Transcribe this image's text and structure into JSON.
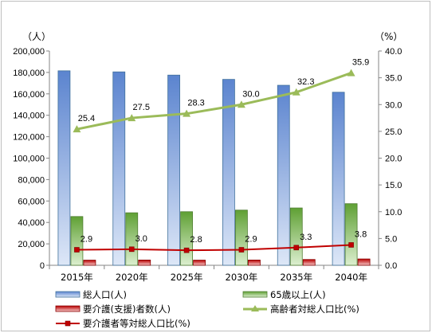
{
  "chart_data": {
    "type": "bar",
    "categories": [
      "2015年",
      "2020年",
      "2025年",
      "2030年",
      "2035年",
      "2040年"
    ],
    "left_axis": {
      "unit_label": "（人）",
      "ylim": [
        0,
        200000
      ],
      "ticks": [
        0,
        20000,
        40000,
        60000,
        80000,
        100000,
        120000,
        140000,
        160000,
        180000,
        200000
      ],
      "tick_labels": [
        "0",
        "20,000",
        "40,000",
        "60,000",
        "80,000",
        "100,000",
        "120,000",
        "140,000",
        "160,000",
        "180,000",
        "200,000"
      ]
    },
    "right_axis": {
      "unit_label": "（%）",
      "ylim": [
        0,
        40
      ],
      "ticks": [
        0,
        5,
        10,
        15,
        20,
        25,
        30,
        35,
        40
      ],
      "tick_labels": [
        "0.0",
        "5.0",
        "10.0",
        "15.0",
        "20.0",
        "25.0",
        "30.0",
        "35.0",
        "40.0"
      ]
    },
    "series": [
      {
        "name": "総人口(人)",
        "kind": "bar",
        "axis": "left",
        "color": "#6f95d8",
        "values": [
          181500,
          180500,
          177500,
          173500,
          168000,
          161500
        ]
      },
      {
        "name": "65歳以上(人)",
        "kind": "bar",
        "axis": "left",
        "color": "#6eab3f",
        "values": [
          45500,
          49000,
          50000,
          51500,
          53500,
          57500
        ]
      },
      {
        "name": "要介護(支援)者数(人)",
        "kind": "bar",
        "axis": "left",
        "color": "#c00000",
        "values": [
          4800,
          4900,
          4800,
          4900,
          5400,
          5900
        ]
      },
      {
        "name": "高齢者対総人口比(%)",
        "kind": "line",
        "axis": "right",
        "color": "#9bbb59",
        "marker": "triangle",
        "values": [
          25.4,
          27.5,
          28.3,
          30.0,
          32.3,
          35.9
        ],
        "labels": [
          "25.4",
          "27.5",
          "28.3",
          "30.0",
          "32.3",
          "35.9"
        ]
      },
      {
        "name": "要介護者等対総人口比(%)",
        "kind": "line",
        "axis": "right",
        "color": "#c00000",
        "marker": "square",
        "values": [
          2.9,
          3.0,
          2.8,
          2.9,
          3.3,
          3.8
        ],
        "labels": [
          "2.9",
          "3.0",
          "2.8",
          "2.9",
          "3.3",
          "3.8"
        ]
      }
    ],
    "legend": {
      "placement": "bottom",
      "items": [
        {
          "label": "総人口(人)",
          "symbol": "bar-blue"
        },
        {
          "label": "65歳以上(人)",
          "symbol": "bar-green"
        },
        {
          "label": "要介護(支援)者数(人)",
          "symbol": "bar-red"
        },
        {
          "label": "高齢者対総人口比(%)",
          "symbol": "line-triangle"
        },
        {
          "label": "要介護者等対総人口比(%)",
          "symbol": "line-square"
        }
      ]
    },
    "grid": false
  }
}
